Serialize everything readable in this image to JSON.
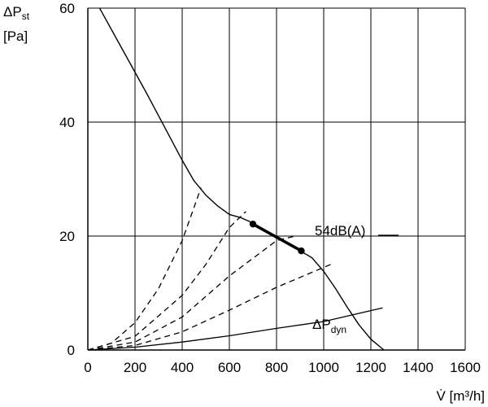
{
  "chart_data": {
    "type": "line",
    "title": "",
    "ylabel_main": "ΔP",
    "ylabel_sub": "st",
    "ylabel_unit": "[Pa]",
    "xlabel": "V̇ [m³/h]",
    "xlim": [
      0,
      1600
    ],
    "ylim": [
      0,
      60
    ],
    "grid": true,
    "x_ticks": [
      "0",
      "200",
      "400",
      "600",
      "800",
      "1000",
      "1200",
      "1400",
      "1600"
    ],
    "y_ticks": [
      "0",
      "20",
      "40",
      "60"
    ],
    "x_tick_values": [
      0,
      200,
      400,
      600,
      800,
      1000,
      1200,
      1400,
      1600
    ],
    "y_tick_values": [
      0,
      20,
      40,
      60
    ],
    "fan_curve": {
      "x": [
        50,
        150,
        250,
        350,
        400,
        450,
        500,
        550,
        600,
        650,
        700,
        750,
        800,
        850,
        900,
        950,
        1000,
        1050,
        1100,
        1150,
        1200,
        1255
      ],
      "y": [
        60,
        52.5,
        45,
        37.2,
        33.3,
        29.7,
        27.2,
        25.3,
        23.8,
        23.2,
        22.3,
        21.1,
        19.8,
        18.5,
        17.4,
        16.2,
        13.8,
        10.8,
        7.5,
        4.4,
        1.9,
        0
      ]
    },
    "operating_segment": {
      "x": [
        700,
        905
      ],
      "y": [
        22.1,
        17.4
      ]
    },
    "operating_label": "54dB(A)",
    "system_curves": [
      {
        "x": [
          0,
          100,
          200,
          300,
          400,
          480
        ],
        "y": [
          0,
          1.2,
          4.8,
          10.8,
          19.2,
          28.5
        ]
      },
      {
        "x": [
          0,
          200,
          400,
          500,
          600,
          670
        ],
        "y": [
          0,
          2.4,
          9.6,
          15.0,
          21.5,
          24.3
        ]
      },
      {
        "x": [
          0,
          200,
          400,
          600,
          800,
          880
        ],
        "y": [
          0,
          1.4,
          5.8,
          13.0,
          19.2,
          20.0
        ]
      },
      {
        "x": [
          0,
          200,
          400,
          600,
          800,
          1040
        ],
        "y": [
          0,
          0.8,
          3.2,
          7.0,
          11.0,
          15.2
        ]
      }
    ],
    "dynamic_pressure": {
      "x": [
        0,
        200,
        400,
        600,
        800,
        1000,
        1250
      ],
      "y": [
        0,
        0.5,
        1.4,
        2.5,
        3.8,
        5.0,
        7.4
      ]
    },
    "dynamic_label_main": "ΔP",
    "dynamic_label_sub": "dyn"
  }
}
